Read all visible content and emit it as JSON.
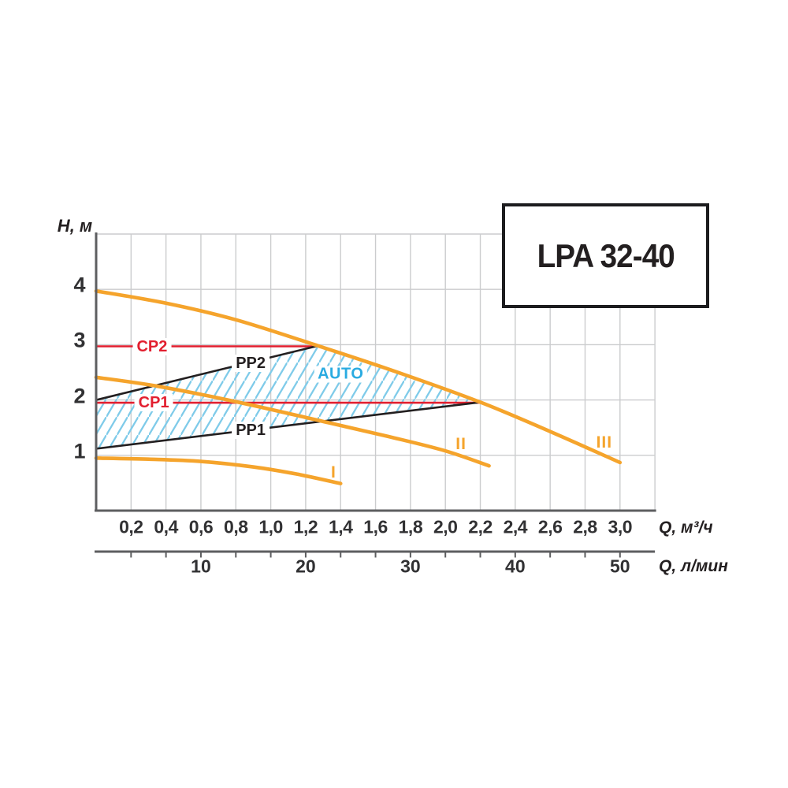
{
  "title_box": {
    "label": "LPA 32-40"
  },
  "colors": {
    "orange": "#f5a42c",
    "red": "#e21f2f",
    "black": "#231f20",
    "hatch_blue": "#7fcbe9",
    "auto_text": "#2aabe1",
    "grid": "#cbccce",
    "axis": "#5d5e60",
    "tick_text": "#313133"
  },
  "chart_data": {
    "type": "line",
    "title": "LPA 32-40",
    "ylabel": "H, м",
    "xlabel_primary": "Q, м³/ч",
    "xlabel_secondary": "Q, л/мин",
    "xlim": [
      0,
      3.2
    ],
    "ylim": [
      0,
      5
    ],
    "grid": "on",
    "x_gridline_step": 0.2,
    "y_gridline_step": 1.0,
    "y_ticks": [
      {
        "value": 4,
        "label": "4"
      },
      {
        "value": 3,
        "label": "3"
      },
      {
        "value": 2,
        "label": "2"
      },
      {
        "value": 1,
        "label": "1"
      }
    ],
    "x_ticks_m3h": [
      {
        "value": 0.2,
        "label": "0,2"
      },
      {
        "value": 0.4,
        "label": "0,4"
      },
      {
        "value": 0.6,
        "label": "0,6"
      },
      {
        "value": 0.8,
        "label": "0,8"
      },
      {
        "value": 1.0,
        "label": "1,0"
      },
      {
        "value": 1.2,
        "label": "1,2"
      },
      {
        "value": 1.4,
        "label": "1,4"
      },
      {
        "value": 1.6,
        "label": "1,6"
      },
      {
        "value": 1.8,
        "label": "1,8"
      },
      {
        "value": 2.0,
        "label": "2,0"
      },
      {
        "value": 2.2,
        "label": "2,2"
      },
      {
        "value": 2.4,
        "label": "2,4"
      },
      {
        "value": 2.6,
        "label": "2,6"
      },
      {
        "value": 2.8,
        "label": "2,8"
      },
      {
        "value": 3.0,
        "label": "3,0"
      }
    ],
    "x_ticks_lmin": [
      {
        "value": 10,
        "q": 0.6,
        "label": "10"
      },
      {
        "value": 20,
        "q": 1.2,
        "label": "20"
      },
      {
        "value": 30,
        "q": 1.8,
        "label": "30"
      },
      {
        "value": 40,
        "q": 2.4,
        "label": "40"
      },
      {
        "value": 50,
        "q": 3.0,
        "label": "50"
      }
    ],
    "series": [
      {
        "name": "I",
        "kind": "speed-curve",
        "points": [
          [
            0,
            0.95
          ],
          [
            0.3,
            0.93
          ],
          [
            0.6,
            0.89
          ],
          [
            0.9,
            0.79
          ],
          [
            1.15,
            0.66
          ],
          [
            1.4,
            0.49
          ]
        ],
        "label_pos": {
          "q": 1.36,
          "h": 0.68
        }
      },
      {
        "name": "II",
        "kind": "speed-curve",
        "points": [
          [
            0,
            2.41
          ],
          [
            0.35,
            2.25
          ],
          [
            0.8,
            1.97
          ],
          [
            1.33,
            1.59
          ],
          [
            1.7,
            1.32
          ],
          [
            2.0,
            1.08
          ],
          [
            2.25,
            0.81
          ]
        ],
        "label_pos": {
          "q": 2.09,
          "h": 1.2
        }
      },
      {
        "name": "III",
        "kind": "speed-curve",
        "points": [
          [
            0,
            3.97
          ],
          [
            0.4,
            3.75
          ],
          [
            0.8,
            3.45
          ],
          [
            1.27,
            2.98
          ],
          [
            1.7,
            2.53
          ],
          [
            2.2,
            1.96
          ],
          [
            2.6,
            1.43
          ],
          [
            3.0,
            0.87
          ]
        ],
        "label_pos": {
          "q": 2.91,
          "h": 1.22
        }
      }
    ],
    "control_lines": [
      {
        "name": "CP1",
        "h": 1.95,
        "q_start": 0,
        "q_end": 2.2,
        "label_pos": {
          "q": 0.33,
          "h": 1.95
        }
      },
      {
        "name": "CP2",
        "h": 2.97,
        "q_start": 0,
        "q_end": 1.27,
        "label_pos": {
          "q": 0.32,
          "h": 2.97
        }
      }
    ],
    "proportional_lines": [
      {
        "name": "PP1",
        "points": [
          [
            0,
            1.12
          ],
          [
            2.2,
            1.96
          ]
        ],
        "label_pos": {
          "q": 0.885,
          "h": 1.45
        }
      },
      {
        "name": "PP2",
        "points": [
          [
            0,
            2.0
          ],
          [
            1.27,
            2.98
          ]
        ],
        "label_pos": {
          "q": 0.885,
          "h": 2.67
        }
      }
    ],
    "auto_region": {
      "label": "AUTO",
      "label_pos": {
        "q": 1.4,
        "h": 2.47
      },
      "polygon": [
        [
          0,
          1.12
        ],
        [
          0,
          2.0
        ],
        [
          1.27,
          2.98
        ],
        [
          1.7,
          2.53
        ],
        [
          2.2,
          1.96
        ]
      ]
    }
  }
}
